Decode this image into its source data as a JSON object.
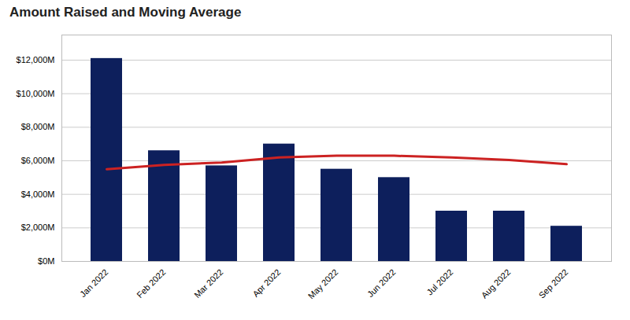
{
  "chart_data": {
    "type": "bar",
    "title": "Amount Raised and Moving Average",
    "categories": [
      "Jan 2022",
      "Feb 2022",
      "Mar 2022",
      "Apr 2022",
      "May 2022",
      "Jun 2022",
      "Jul 2022",
      "Aug 2022",
      "Sep 2022"
    ],
    "series": [
      {
        "type": "bar",
        "color": "#0d1f5c",
        "values": [
          12100,
          6600,
          5700,
          7000,
          5500,
          5000,
          3000,
          3000,
          2100
        ]
      },
      {
        "type": "line",
        "color": "#cc2222",
        "values": [
          5500,
          5750,
          5900,
          6200,
          6300,
          6300,
          6200,
          6050,
          5800
        ]
      }
    ],
    "ylim": [
      0,
      13500
    ],
    "yticks": [
      {
        "value": 0,
        "label": "$0M"
      },
      {
        "value": 2000,
        "label": "$2,000M"
      },
      {
        "value": 4000,
        "label": "$4,000M"
      },
      {
        "value": 6000,
        "label": "$6,000M"
      },
      {
        "value": 8000,
        "label": "$8,000M"
      },
      {
        "value": 10000,
        "label": "$10,000M"
      },
      {
        "value": 12000,
        "label": "$12,000M"
      }
    ],
    "grid": true
  }
}
